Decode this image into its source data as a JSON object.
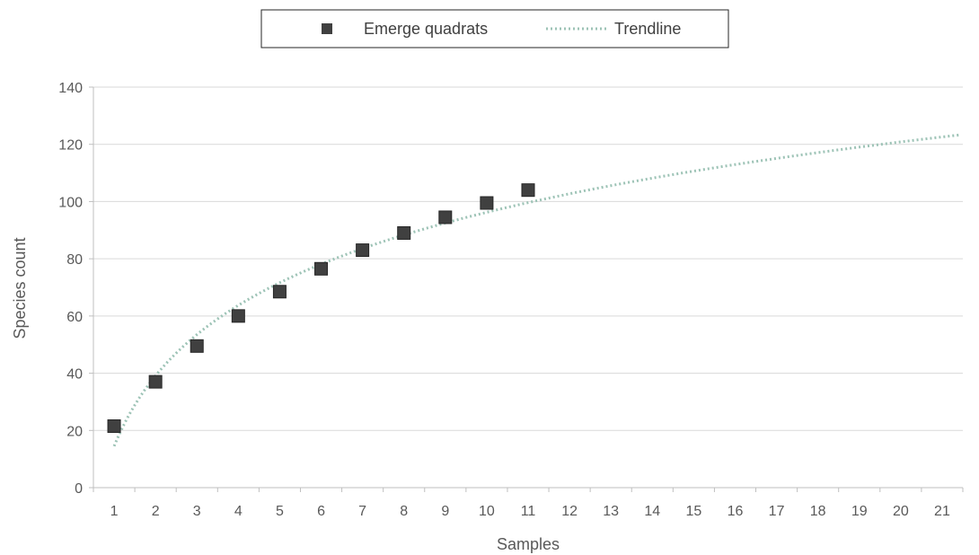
{
  "chart_data": {
    "type": "scatter",
    "title": "",
    "xlabel": "Samples",
    "ylabel": "Species count",
    "xlim": [
      0.5,
      21.5
    ],
    "ylim": [
      0,
      140
    ],
    "xticks": [
      "1",
      "2",
      "3",
      "4",
      "5",
      "6",
      "7",
      "8",
      "9",
      "10",
      "11",
      "12",
      "13",
      "14",
      "15",
      "16",
      "17",
      "18",
      "19",
      "20",
      "21"
    ],
    "yticks": [
      "0",
      "20",
      "40",
      "60",
      "80",
      "100",
      "120",
      "140"
    ],
    "grid": "horizontal",
    "legend": {
      "placement": "top-center",
      "entries": [
        "Emerge quadrats",
        "Trendline"
      ]
    },
    "series": [
      {
        "name": "Emerge quadrats",
        "marker": "square",
        "color": "#404040",
        "x": [
          1,
          2,
          3,
          4,
          5,
          6,
          7,
          8,
          9,
          10,
          11
        ],
        "y": [
          21.5,
          37,
          49.5,
          60,
          68.5,
          76.5,
          83,
          89,
          94.5,
          99.5,
          104
        ]
      },
      {
        "name": "Trendline",
        "style": "dotted",
        "color": "#9dc3b6",
        "fit": "logarithmic",
        "a": 14.5,
        "b": 35.5,
        "x_range": [
          1,
          21.4
        ]
      }
    ]
  }
}
